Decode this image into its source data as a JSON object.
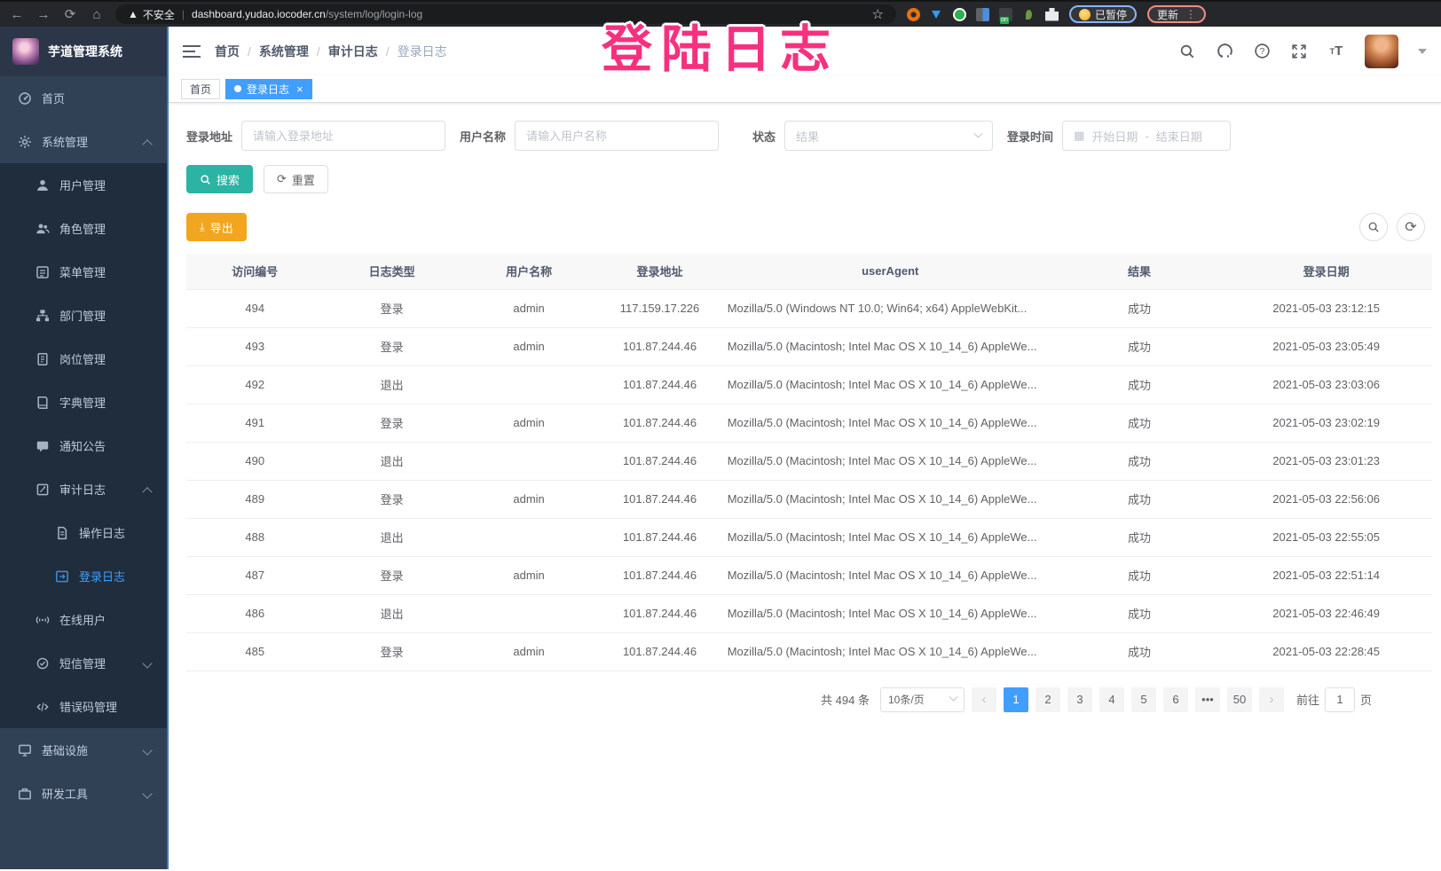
{
  "browser": {
    "security_label": "不安全",
    "url_host": "dashboard.yudao.iocoder.cn",
    "url_path": "/system/log/login-log",
    "paused_badge": "已暂停",
    "update_button": "更新",
    "extensions": [
      "orange-circle-extension",
      "blue-gem-extension",
      "green-circle-extension",
      "blue-grid-extension",
      "list-on-extension",
      "green-sprout-extension",
      "puzzle-extension"
    ]
  },
  "annotation": {
    "text": "登陆日志"
  },
  "sidebar": {
    "app_title": "芋道管理系统",
    "items": [
      {
        "key": "home",
        "label": "首页",
        "icon": "dashboard-icon",
        "level": 1,
        "dark": false
      },
      {
        "key": "system-management",
        "label": "系统管理",
        "icon": "gear-icon",
        "level": 1,
        "dark": false,
        "arrow": "up"
      },
      {
        "key": "user-management",
        "label": "用户管理",
        "icon": "user-icon",
        "level": 2,
        "dark": true
      },
      {
        "key": "role-management",
        "label": "角色管理",
        "icon": "users-icon",
        "level": 2,
        "dark": true
      },
      {
        "key": "menu-management",
        "label": "菜单管理",
        "icon": "menu-list-icon",
        "level": 2,
        "dark": true
      },
      {
        "key": "dept-management",
        "label": "部门管理",
        "icon": "org-tree-icon",
        "level": 2,
        "dark": true
      },
      {
        "key": "post-management",
        "label": "岗位管理",
        "icon": "id-badge-icon",
        "level": 2,
        "dark": true
      },
      {
        "key": "dict-management",
        "label": "字典管理",
        "icon": "dictionary-icon",
        "level": 2,
        "dark": true
      },
      {
        "key": "notice-announcement",
        "label": "通知公告",
        "icon": "announcement-icon",
        "level": 2,
        "dark": true
      },
      {
        "key": "audit-log",
        "label": "审计日志",
        "icon": "audit-log-icon",
        "level": 2,
        "dark": true,
        "arrow": "up"
      },
      {
        "key": "operation-log",
        "label": "操作日志",
        "icon": "operation-log-icon",
        "level": 3,
        "dark": true
      },
      {
        "key": "login-log",
        "label": "登录日志",
        "icon": "login-log-icon",
        "level": 3,
        "dark": true,
        "active": true
      },
      {
        "key": "online-users",
        "label": "在线用户",
        "icon": "online-users-icon",
        "level": 2,
        "dark": true
      },
      {
        "key": "sms-management",
        "label": "短信管理",
        "icon": "sms-icon",
        "level": 2,
        "dark": true,
        "arrow": "down"
      },
      {
        "key": "error-code-management",
        "label": "错误码管理",
        "icon": "error-code-icon",
        "level": 2,
        "dark": true
      },
      {
        "key": "infrastructure",
        "label": "基础设施",
        "icon": "infrastructure-icon",
        "level": 1,
        "dark": false,
        "arrow": "down"
      },
      {
        "key": "dev-tools",
        "label": "研发工具",
        "icon": "dev-tools-icon",
        "level": 1,
        "dark": false,
        "arrow": "down"
      }
    ]
  },
  "header": {
    "breadcrumb": [
      "首页",
      "系统管理",
      "审计日志",
      "登录日志"
    ]
  },
  "tags": [
    {
      "key": "home",
      "label": "首页",
      "active": false
    },
    {
      "key": "login-log",
      "label": "登录日志",
      "active": true,
      "closable": true
    }
  ],
  "filters": {
    "login_address_label": "登录地址",
    "login_address_placeholder": "请输入登录地址",
    "username_label": "用户名称",
    "username_placeholder": "请输入用户名称",
    "status_label": "状态",
    "status_placeholder": "结果",
    "login_time_label": "登录时间",
    "date_start_placeholder": "开始日期",
    "date_separator": "-",
    "date_end_placeholder": "结束日期",
    "search_button": "搜索",
    "reset_button": "重置"
  },
  "toolbar": {
    "export_button": "导出"
  },
  "table": {
    "columns": [
      "访问编号",
      "日志类型",
      "用户名称",
      "登录地址",
      "userAgent",
      "结果",
      "登录日期"
    ],
    "rows": [
      [
        "494",
        "登录",
        "admin",
        "117.159.17.226",
        "Mozilla/5.0 (Windows NT 10.0; Win64; x64) AppleWebKit...",
        "成功",
        "2021-05-03 23:12:15"
      ],
      [
        "493",
        "登录",
        "admin",
        "101.87.244.46",
        "Mozilla/5.0 (Macintosh; Intel Mac OS X 10_14_6) AppleWe...",
        "成功",
        "2021-05-03 23:05:49"
      ],
      [
        "492",
        "退出",
        "",
        "101.87.244.46",
        "Mozilla/5.0 (Macintosh; Intel Mac OS X 10_14_6) AppleWe...",
        "成功",
        "2021-05-03 23:03:06"
      ],
      [
        "491",
        "登录",
        "admin",
        "101.87.244.46",
        "Mozilla/5.0 (Macintosh; Intel Mac OS X 10_14_6) AppleWe...",
        "成功",
        "2021-05-03 23:02:19"
      ],
      [
        "490",
        "退出",
        "",
        "101.87.244.46",
        "Mozilla/5.0 (Macintosh; Intel Mac OS X 10_14_6) AppleWe...",
        "成功",
        "2021-05-03 23:01:23"
      ],
      [
        "489",
        "登录",
        "admin",
        "101.87.244.46",
        "Mozilla/5.0 (Macintosh; Intel Mac OS X 10_14_6) AppleWe...",
        "成功",
        "2021-05-03 22:56:06"
      ],
      [
        "488",
        "退出",
        "",
        "101.87.244.46",
        "Mozilla/5.0 (Macintosh; Intel Mac OS X 10_14_6) AppleWe...",
        "成功",
        "2021-05-03 22:55:05"
      ],
      [
        "487",
        "登录",
        "admin",
        "101.87.244.46",
        "Mozilla/5.0 (Macintosh; Intel Mac OS X 10_14_6) AppleWe...",
        "成功",
        "2021-05-03 22:51:14"
      ],
      [
        "486",
        "退出",
        "",
        "101.87.244.46",
        "Mozilla/5.0 (Macintosh; Intel Mac OS X 10_14_6) AppleWe...",
        "成功",
        "2021-05-03 22:46:49"
      ],
      [
        "485",
        "登录",
        "admin",
        "101.87.244.46",
        "Mozilla/5.0 (Macintosh; Intel Mac OS X 10_14_6) AppleWe...",
        "成功",
        "2021-05-03 22:28:45"
      ]
    ]
  },
  "pagination": {
    "total_text": "共 494 条",
    "page_size": "10条/页",
    "prev": "‹",
    "pages": [
      "1",
      "2",
      "3",
      "4",
      "5",
      "6",
      "•••",
      "50"
    ],
    "active_page": "1",
    "next": "›",
    "goto_label": "前往",
    "goto_value": "1",
    "goto_unit": "页"
  },
  "colors": {
    "accent_blue": "#409eff",
    "annotation_pink": "#f5317f",
    "search_button_teal": "#2bb3a3",
    "export_button_orange": "#f2a51f",
    "sidebar_bg": "#304156",
    "sidebar_submenu_bg": "#1f2d3d"
  }
}
